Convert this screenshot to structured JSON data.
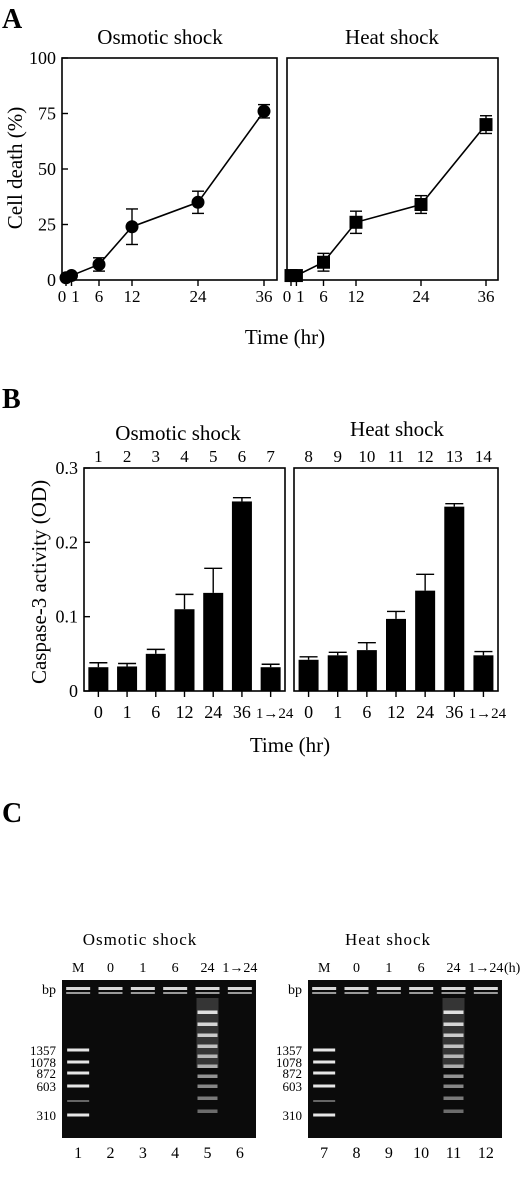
{
  "panels": {
    "a": {
      "letter": "A"
    },
    "b": {
      "letter": "B"
    },
    "c": {
      "letter": "C"
    }
  },
  "chart_data": [
    {
      "id": "a-osmotic",
      "type": "line",
      "title": "Osmotic shock",
      "xlabel": "Time (hr)",
      "ylabel": "Cell death (%)",
      "ylim": [
        0,
        100
      ],
      "yticks": [
        "0",
        "25",
        "50",
        "75",
        "100"
      ],
      "xticks": [
        "0",
        "1",
        "6",
        "12",
        "24",
        "36"
      ],
      "marker": "circle",
      "x": [
        0,
        1,
        6,
        12,
        24,
        36
      ],
      "y": [
        1,
        2,
        7,
        24,
        35,
        76
      ],
      "error": [
        1,
        1,
        3,
        8,
        5,
        3
      ]
    },
    {
      "id": "a-heat",
      "type": "line",
      "title": "Heat shock",
      "xlabel": "Time (hr)",
      "ylabel": "",
      "ylim": [
        0,
        100
      ],
      "xticks": [
        "0",
        "1",
        "6",
        "12",
        "24",
        "36"
      ],
      "marker": "square",
      "x": [
        0,
        1,
        6,
        12,
        24,
        36
      ],
      "y": [
        2,
        2,
        8,
        26,
        34,
        70
      ],
      "error": [
        1,
        1,
        4,
        5,
        4,
        4
      ]
    },
    {
      "id": "b-osmotic",
      "type": "bar",
      "title": "Osmotic shock",
      "xlabel": "Time (hr)",
      "ylabel": "Caspase-3 activity (OD)",
      "ylim": [
        0,
        0.3
      ],
      "yticks": [
        "0",
        "0.1",
        "0.2",
        "0.3"
      ],
      "lane_numbers": [
        "1",
        "2",
        "3",
        "4",
        "5",
        "6",
        "7"
      ],
      "categories": [
        "0",
        "1",
        "6",
        "12",
        "24",
        "36",
        "1→24"
      ],
      "values": [
        0.032,
        0.033,
        0.05,
        0.11,
        0.132,
        0.255,
        0.032
      ],
      "error": [
        0.006,
        0.004,
        0.006,
        0.02,
        0.033,
        0.005,
        0.004
      ]
    },
    {
      "id": "b-heat",
      "type": "bar",
      "title": "Heat shock",
      "xlabel": "Time (hr)",
      "ylabel": "",
      "ylim": [
        0,
        0.3
      ],
      "lane_numbers": [
        "8",
        "9",
        "10",
        "11",
        "12",
        "13",
        "14"
      ],
      "categories": [
        "0",
        "1",
        "6",
        "12",
        "24",
        "36",
        "1→24"
      ],
      "values": [
        0.042,
        0.048,
        0.055,
        0.097,
        0.135,
        0.248,
        0.048
      ],
      "error": [
        0.004,
        0.004,
        0.01,
        0.01,
        0.022,
        0.004,
        0.005
      ]
    }
  ],
  "gels": [
    {
      "id": "gel-osmotic",
      "title": "Osmotic shock",
      "header": [
        "M",
        "0",
        "1",
        "6",
        "24",
        "1→24"
      ],
      "header_suffix": "",
      "bp_label": "bp",
      "markers": [
        "1357",
        "1078",
        "872",
        "603",
        "310"
      ],
      "lane_numbers": [
        "1",
        "2",
        "3",
        "4",
        "5",
        "6"
      ],
      "ladder_lane_index": 4
    },
    {
      "id": "gel-heat",
      "title": "Heat shock",
      "header": [
        "M",
        "0",
        "1",
        "6",
        "24",
        "1→24"
      ],
      "header_suffix": "(h)",
      "bp_label": "bp",
      "markers": [
        "1357",
        "1078",
        "872",
        "603",
        "310"
      ],
      "lane_numbers": [
        "7",
        "8",
        "9",
        "10",
        "11",
        "12"
      ],
      "ladder_lane_index": 4
    }
  ]
}
